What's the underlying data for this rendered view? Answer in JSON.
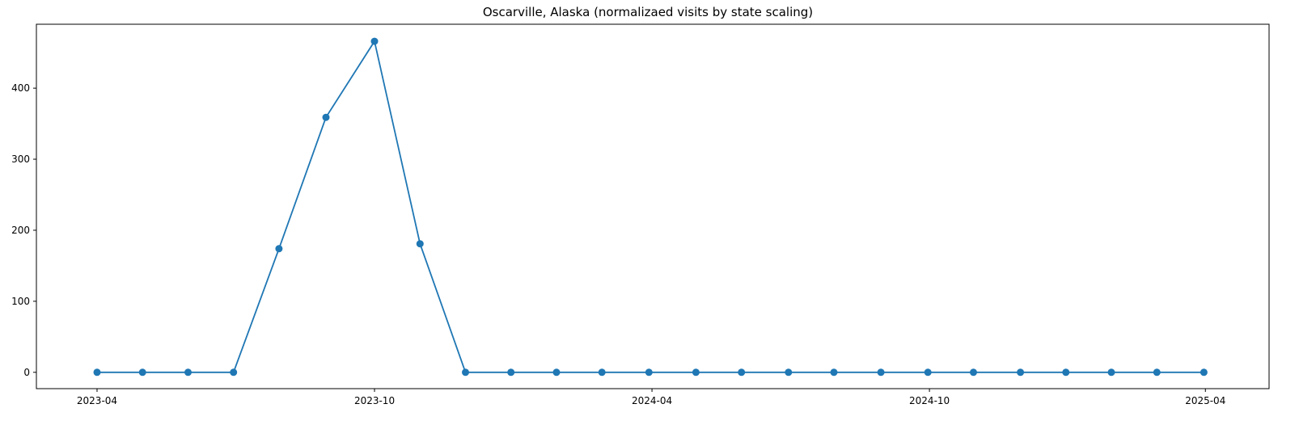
{
  "chart_data": {
    "type": "line",
    "title": "Oscarville, Alaska (normalizaed visits by state scaling)",
    "xlabel": "",
    "ylabel": "",
    "x_tick_labels": [
      "2023-04",
      "2023-10",
      "2024-04",
      "2024-10",
      "2025-04"
    ],
    "y_tick_labels": [
      "0",
      "100",
      "200",
      "300",
      "400"
    ],
    "y_ticks": [
      0,
      100,
      200,
      300,
      400
    ],
    "xlim": [
      "2023-02-20",
      "2025-05-13"
    ],
    "ylim": [
      -23,
      490
    ],
    "grid": false,
    "legend": "none",
    "series": [
      {
        "color": "#1f77b4",
        "marker": "circle",
        "x": [
          "2023-04-01",
          "2023-05-01",
          "2023-05-31",
          "2023-06-30",
          "2023-07-30",
          "2023-08-30",
          "2023-10-01",
          "2023-10-31",
          "2023-11-30",
          "2023-12-30",
          "2024-01-29",
          "2024-02-28",
          "2024-03-30",
          "2024-04-30",
          "2024-05-30",
          "2024-06-30",
          "2024-07-30",
          "2024-08-30",
          "2024-09-30",
          "2024-10-30",
          "2024-11-30",
          "2024-12-30",
          "2025-01-29",
          "2025-02-28",
          "2025-03-31"
        ],
        "values": [
          0,
          0,
          0,
          0,
          174,
          359,
          466,
          181,
          0,
          0,
          0,
          0,
          0,
          0,
          0,
          0,
          0,
          0,
          0,
          0,
          0,
          0,
          0,
          0,
          0
        ]
      }
    ]
  }
}
